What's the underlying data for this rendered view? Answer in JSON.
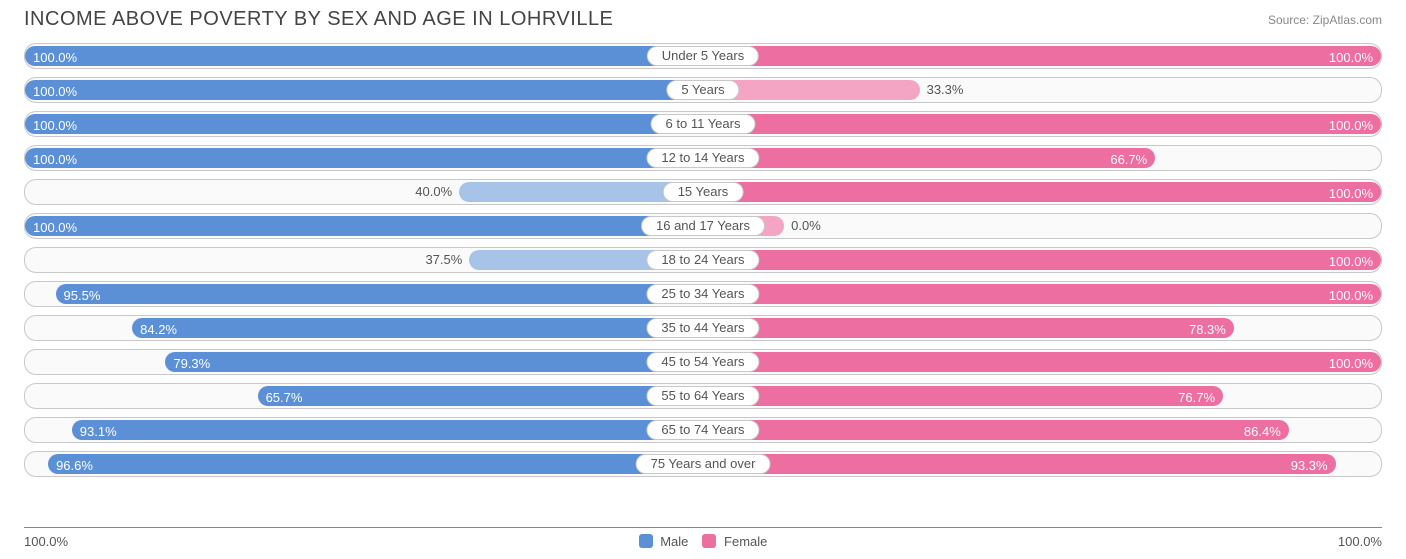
{
  "title": "INCOME ABOVE POVERTY BY SEX AND AGE IN LOHRVILLE",
  "source": "Source: ZipAtlas.com",
  "chart": {
    "type": "diverging-bar",
    "axis_left_label": "100.0%",
    "axis_right_label": "100.0%",
    "legend": {
      "male": "Male",
      "female": "Female"
    },
    "colors": {
      "male_full": "#5b8fd6",
      "male_light": "#a8c3e8",
      "female_full": "#ed6ea0",
      "female_light": "#f5a5c4",
      "row_border": "#c8c8c8",
      "row_bg": "#fafafa",
      "text": "#555555"
    },
    "label_inside_threshold": 55,
    "short_bar_extent": 12,
    "categories": [
      {
        "label": "Under 5 Years",
        "male": 100.0,
        "female": 100.0
      },
      {
        "label": "5 Years",
        "male": 100.0,
        "female": 33.3
      },
      {
        "label": "6 to 11 Years",
        "male": 100.0,
        "female": 100.0
      },
      {
        "label": "12 to 14 Years",
        "male": 100.0,
        "female": 66.7
      },
      {
        "label": "15 Years",
        "male": 40.0,
        "female": 100.0
      },
      {
        "label": "16 and 17 Years",
        "male": 100.0,
        "female": 0.0
      },
      {
        "label": "18 to 24 Years",
        "male": 37.5,
        "female": 100.0
      },
      {
        "label": "25 to 34 Years",
        "male": 95.5,
        "female": 100.0
      },
      {
        "label": "35 to 44 Years",
        "male": 84.2,
        "female": 78.3
      },
      {
        "label": "45 to 54 Years",
        "male": 79.3,
        "female": 100.0
      },
      {
        "label": "55 to 64 Years",
        "male": 65.7,
        "female": 76.7
      },
      {
        "label": "65 to 74 Years",
        "male": 93.1,
        "female": 86.4
      },
      {
        "label": "75 Years and over",
        "male": 96.6,
        "female": 93.3
      }
    ]
  }
}
